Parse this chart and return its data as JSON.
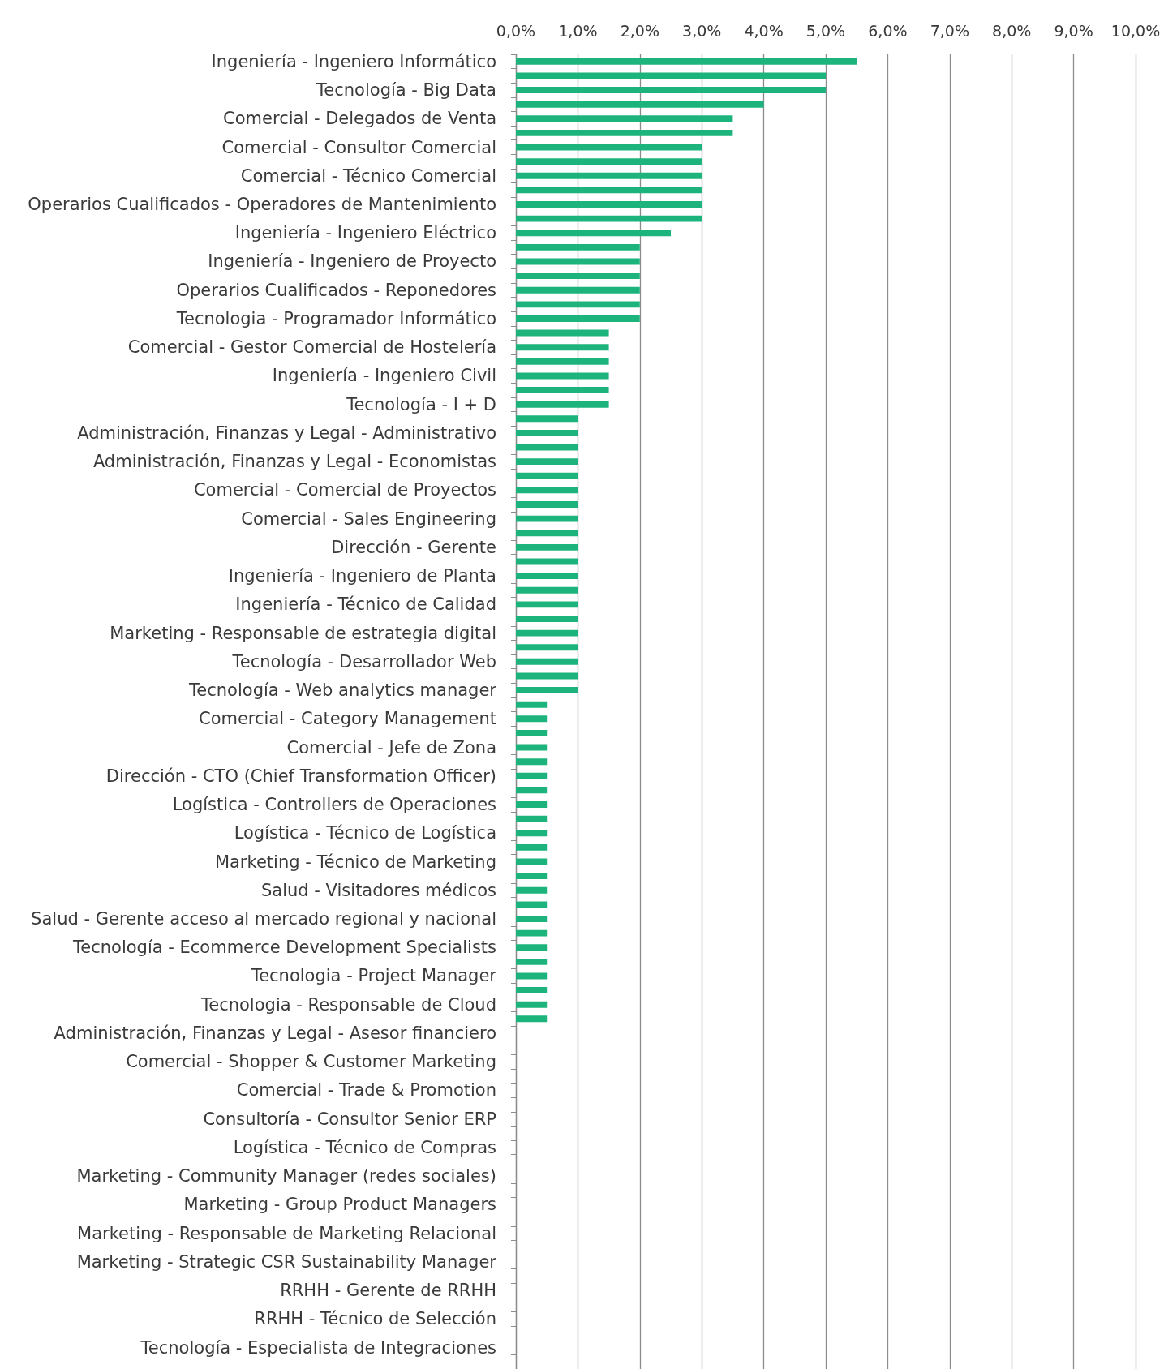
{
  "chart_data": {
    "type": "bar",
    "orientation": "horizontal",
    "categories": [
      "Ingeniería - Ingeniero Informático",
      null,
      "Tecnología - Big Data",
      null,
      "Comercial - Delegados de Venta",
      null,
      "Comercial - Consultor Comercial",
      null,
      "Comercial - Técnico Comercial",
      null,
      "Operarios Cualificados - Operadores de Mantenimiento",
      null,
      "Ingeniería - Ingeniero Eléctrico",
      null,
      "Ingeniería - Ingeniero de Proyecto",
      null,
      "Operarios Cualificados - Reponedores",
      null,
      "Tecnologia - Programador Informático",
      null,
      "Comercial - Gestor Comercial de Hostelería",
      null,
      "Ingeniería - Ingeniero Civil",
      null,
      "Tecnología - I + D",
      null,
      "Administración, Finanzas y Legal - Administrativo",
      null,
      "Administración, Finanzas y Legal - Economistas",
      null,
      "Comercial - Comercial de Proyectos",
      null,
      "Comercial - Sales Engineering",
      null,
      "Dirección - Gerente",
      null,
      "Ingeniería - Ingeniero de Planta",
      null,
      "Ingeniería - Técnico de Calidad",
      null,
      "Marketing - Responsable de estrategia digital",
      null,
      "Tecnología - Desarrollador Web",
      null,
      "Tecnología - Web analytics manager",
      null,
      "Comercial - Category Management",
      null,
      "Comercial - Jefe de Zona",
      null,
      "Dirección - CTO (Chief Transformation Officer)",
      null,
      "Logística - Controllers de Operaciones",
      null,
      "Logística - Técnico de Logística",
      null,
      "Marketing - Técnico de Marketing",
      null,
      "Salud - Visitadores médicos",
      null,
      "Salud - Gerente acceso al mercado regional y nacional",
      null,
      "Tecnología - Ecommerce Development Specialists",
      null,
      "Tecnologia - Project Manager",
      null,
      "Tecnologia - Responsable de Cloud",
      null,
      "Administración, Finanzas y Legal - Asesor financiero",
      null,
      "Comercial - Shopper & Customer Marketing",
      null,
      "Comercial - Trade & Promotion",
      null,
      "Consultoría - Consultor Senior ERP",
      null,
      "Logística - Técnico de Compras",
      null,
      "Marketing - Community Manager (redes sociales)",
      null,
      "Marketing - Group Product Managers",
      null,
      "Marketing - Responsable de Marketing Relacional",
      null,
      "Marketing - Strategic CSR Sustainability Manager",
      null,
      "RRHH - Gerente de RRHH",
      null,
      "RRHH - Técnico de Selección",
      null,
      "Tecnología - Especialista de Integraciones",
      null
    ],
    "values": [
      5.5,
      5.0,
      5.0,
      4.0,
      3.5,
      3.5,
      3.0,
      3.0,
      3.0,
      3.0,
      3.0,
      3.0,
      2.5,
      2.0,
      2.0,
      2.0,
      2.0,
      2.0,
      2.0,
      1.5,
      1.5,
      1.5,
      1.5,
      1.5,
      1.5,
      1.0,
      1.0,
      1.0,
      1.0,
      1.0,
      1.0,
      1.0,
      1.0,
      1.0,
      1.0,
      1.0,
      1.0,
      1.0,
      1.0,
      1.0,
      1.0,
      1.0,
      1.0,
      1.0,
      1.0,
      0.5,
      0.5,
      0.5,
      0.5,
      0.5,
      0.5,
      0.5,
      0.5,
      0.5,
      0.5,
      0.5,
      0.5,
      0.5,
      0.5,
      0.5,
      0.5,
      0.5,
      0.5,
      0.5,
      0.5,
      0.5,
      0.5,
      0.5,
      0,
      0,
      0,
      0,
      0,
      0,
      0,
      0,
      0,
      0,
      0,
      0,
      0,
      0,
      0,
      0,
      0,
      0,
      0,
      0,
      0,
      0,
      0,
      0
    ],
    "color": "#1cb47c",
    "xlim": [
      0,
      10
    ],
    "xticks": [
      {
        "value": 0,
        "label": "0,0%"
      },
      {
        "value": 1,
        "label": "1,0%"
      },
      {
        "value": 2,
        "label": "2,0%"
      },
      {
        "value": 3,
        "label": "3,0%"
      },
      {
        "value": 4,
        "label": "4,0%"
      },
      {
        "value": 5,
        "label": "5,0%"
      },
      {
        "value": 6,
        "label": "6,0%"
      },
      {
        "value": 7,
        "label": "7,0%"
      },
      {
        "value": 8,
        "label": "8,0%"
      },
      {
        "value": 9,
        "label": "9,0%"
      },
      {
        "value": 10,
        "label": "10,0%"
      }
    ],
    "grid": "x"
  }
}
